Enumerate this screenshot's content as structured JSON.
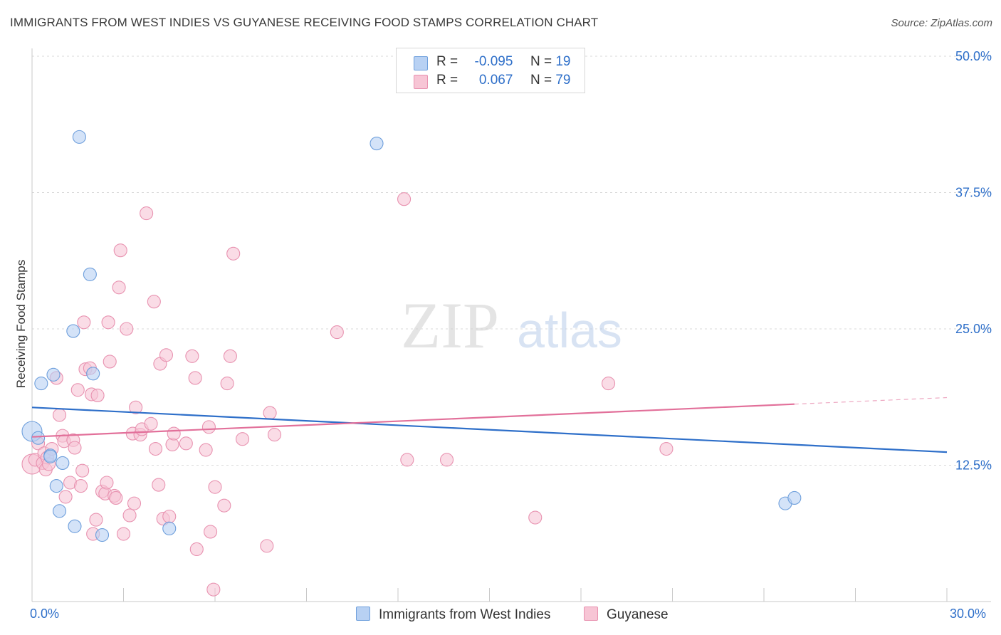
{
  "title": "IMMIGRANTS FROM WEST INDIES VS GUYANESE RECEIVING FOOD STAMPS CORRELATION CHART",
  "source": "Source: ZipAtlas.com",
  "watermark": {
    "zip": "ZIP",
    "atlas": "atlas"
  },
  "colors": {
    "blue_fill": "#b8d1f3",
    "blue_stroke": "#6e9fdc",
    "blue_line": "#2e6fc9",
    "pink_fill": "#f7c5d5",
    "pink_stroke": "#e892b0",
    "pink_line": "#e2709a",
    "axis_text": "#2e6fc9",
    "grid": "#d9d9d9"
  },
  "legend": {
    "rows": [
      {
        "r_label": "R =",
        "r_value": "-0.095",
        "n_label": "N =",
        "n_value": "19",
        "series": "blue"
      },
      {
        "r_label": "R =",
        "r_value": "0.067",
        "n_label": "N =",
        "n_value": "79",
        "series": "pink"
      }
    ]
  },
  "bottom_legend": {
    "blue": "Immigrants from West Indies",
    "pink": "Guyanese"
  },
  "chart_data": {
    "type": "scatter",
    "title": "IMMIGRANTS FROM WEST INDIES VS GUYANESE RECEIVING FOOD STAMPS CORRELATION CHART",
    "xlabel": "",
    "ylabel": "Receiving Food Stamps",
    "xlim": [
      0,
      30
    ],
    "ylim": [
      0,
      50
    ],
    "x_tick_labels": {
      "min": "0.0%",
      "max": "30.0%"
    },
    "y_ticks": [
      12.5,
      25.0,
      37.5,
      50.0
    ],
    "y_tick_labels": [
      "12.5%",
      "25.0%",
      "37.5%",
      "50.0%"
    ],
    "series": [
      {
        "name": "Immigrants from West Indies",
        "color": "blue",
        "trend": {
          "x": [
            0,
            30
          ],
          "y": [
            17.8,
            13.7
          ]
        },
        "points": [
          [
            0.0,
            15.6,
            14
          ],
          [
            0.2,
            15.0,
            9
          ],
          [
            0.3,
            20.0,
            9
          ],
          [
            0.6,
            13.4,
            9
          ],
          [
            0.7,
            20.8,
            9
          ],
          [
            0.8,
            10.6,
            9
          ],
          [
            0.9,
            8.3,
            9
          ],
          [
            1.0,
            12.7,
            9
          ],
          [
            1.35,
            24.8,
            9
          ],
          [
            1.4,
            6.9,
            9
          ],
          [
            1.55,
            42.6,
            9
          ],
          [
            1.9,
            30.0,
            9
          ],
          [
            2.0,
            20.9,
            9
          ],
          [
            2.3,
            6.1,
            9
          ],
          [
            4.5,
            6.7,
            9
          ],
          [
            11.3,
            42.0,
            9
          ],
          [
            24.7,
            9.0,
            9
          ],
          [
            25.0,
            9.5,
            9
          ],
          [
            0.6,
            13.3,
            9
          ]
        ]
      },
      {
        "name": "Guyanese",
        "color": "pink",
        "trend": {
          "x": [
            0,
            25.0
          ],
          "y": [
            15.1,
            18.1
          ]
        },
        "trend_dashed": {
          "x": [
            25.0,
            30.0
          ],
          "y": [
            18.1,
            18.7
          ]
        },
        "points": [
          [
            0.0,
            12.6,
            14
          ],
          [
            0.1,
            13.0,
            9
          ],
          [
            0.2,
            14.5,
            9
          ],
          [
            0.35,
            12.7,
            9
          ],
          [
            0.4,
            13.6,
            9
          ],
          [
            0.45,
            12.1,
            9
          ],
          [
            0.5,
            13.2,
            9
          ],
          [
            0.55,
            12.6,
            9
          ],
          [
            0.65,
            14.0,
            9
          ],
          [
            0.8,
            20.5,
            9
          ],
          [
            0.9,
            17.1,
            9
          ],
          [
            1.0,
            15.2,
            9
          ],
          [
            1.05,
            14.7,
            9
          ],
          [
            1.1,
            9.6,
            9
          ],
          [
            1.25,
            10.9,
            9
          ],
          [
            1.35,
            14.8,
            9
          ],
          [
            1.4,
            14.1,
            9
          ],
          [
            1.5,
            19.4,
            9
          ],
          [
            1.6,
            10.6,
            9
          ],
          [
            1.65,
            12.0,
            9
          ],
          [
            1.7,
            25.6,
            9
          ],
          [
            1.75,
            21.3,
            9
          ],
          [
            1.9,
            21.4,
            9
          ],
          [
            1.95,
            19.0,
            9
          ],
          [
            2.0,
            6.2,
            9
          ],
          [
            2.1,
            7.5,
            9
          ],
          [
            2.15,
            18.9,
            9
          ],
          [
            2.3,
            10.1,
            9
          ],
          [
            2.4,
            9.9,
            9
          ],
          [
            2.45,
            10.9,
            9
          ],
          [
            2.5,
            25.6,
            9
          ],
          [
            2.55,
            22.0,
            9
          ],
          [
            2.7,
            9.7,
            9
          ],
          [
            2.75,
            9.5,
            9
          ],
          [
            2.85,
            28.8,
            9
          ],
          [
            2.9,
            32.2,
            9
          ],
          [
            3.0,
            6.2,
            9
          ],
          [
            3.1,
            25.0,
            9
          ],
          [
            3.2,
            7.9,
            9
          ],
          [
            3.3,
            15.4,
            9
          ],
          [
            3.35,
            9.0,
            9
          ],
          [
            3.4,
            17.8,
            9
          ],
          [
            3.55,
            15.3,
            9
          ],
          [
            3.6,
            15.8,
            9
          ],
          [
            3.75,
            35.6,
            9
          ],
          [
            3.9,
            16.3,
            9
          ],
          [
            4.0,
            27.5,
            9
          ],
          [
            4.05,
            14.0,
            9
          ],
          [
            4.15,
            10.7,
            9
          ],
          [
            4.2,
            21.8,
            9
          ],
          [
            4.3,
            7.6,
            9
          ],
          [
            4.4,
            22.6,
            9
          ],
          [
            4.5,
            7.8,
            9
          ],
          [
            4.6,
            14.4,
            9
          ],
          [
            4.65,
            15.4,
            9
          ],
          [
            5.05,
            14.5,
            9
          ],
          [
            5.25,
            22.5,
            9
          ],
          [
            5.35,
            20.5,
            9
          ],
          [
            5.4,
            4.8,
            9
          ],
          [
            5.7,
            13.9,
            9
          ],
          [
            5.8,
            16.0,
            9
          ],
          [
            5.85,
            6.4,
            9
          ],
          [
            5.95,
            1.1,
            9
          ],
          [
            6.0,
            10.5,
            9
          ],
          [
            6.3,
            8.8,
            9
          ],
          [
            6.4,
            20.0,
            9
          ],
          [
            6.5,
            22.5,
            9
          ],
          [
            6.6,
            31.9,
            9
          ],
          [
            6.9,
            14.9,
            9
          ],
          [
            7.7,
            5.1,
            9
          ],
          [
            7.8,
            17.3,
            9
          ],
          [
            7.95,
            15.3,
            9
          ],
          [
            10.0,
            24.7,
            9
          ],
          [
            12.2,
            36.9,
            9
          ],
          [
            12.3,
            13.0,
            9
          ],
          [
            13.6,
            13.0,
            9
          ],
          [
            16.5,
            7.7,
            9
          ],
          [
            18.9,
            20.0,
            9
          ],
          [
            20.8,
            14.0,
            9
          ]
        ]
      }
    ]
  }
}
